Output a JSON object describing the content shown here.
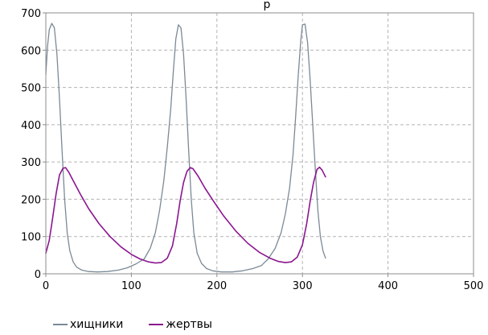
{
  "chart_data": {
    "type": "line",
    "title": "р",
    "xlabel": "",
    "ylabel": "",
    "xlim": [
      0,
      500
    ],
    "ylim": [
      0,
      700
    ],
    "x_ticks": [
      0,
      100,
      200,
      300,
      400,
      500
    ],
    "y_ticks": [
      0,
      100,
      200,
      300,
      400,
      500,
      600,
      700
    ],
    "grid": true,
    "legend_position": "bottom-left",
    "series": [
      {
        "name": "хищники",
        "color": "#7a8a97",
        "points": [
          [
            0,
            535
          ],
          [
            2,
            610
          ],
          [
            4,
            655
          ],
          [
            7,
            672
          ],
          [
            10,
            660
          ],
          [
            13,
            590
          ],
          [
            16,
            470
          ],
          [
            19,
            330
          ],
          [
            22,
            200
          ],
          [
            25,
            110
          ],
          [
            28,
            62
          ],
          [
            32,
            32
          ],
          [
            36,
            18
          ],
          [
            42,
            10
          ],
          [
            50,
            6
          ],
          [
            60,
            5
          ],
          [
            72,
            6
          ],
          [
            85,
            10
          ],
          [
            95,
            16
          ],
          [
            105,
            26
          ],
          [
            115,
            40
          ],
          [
            122,
            68
          ],
          [
            128,
            110
          ],
          [
            133,
            170
          ],
          [
            138,
            250
          ],
          [
            142,
            340
          ],
          [
            146,
            440
          ],
          [
            149,
            540
          ],
          [
            152,
            630
          ],
          [
            155,
            668
          ],
          [
            158,
            660
          ],
          [
            161,
            590
          ],
          [
            164,
            470
          ],
          [
            167,
            330
          ],
          [
            170,
            200
          ],
          [
            173,
            110
          ],
          [
            177,
            55
          ],
          [
            182,
            28
          ],
          [
            188,
            14
          ],
          [
            195,
            8
          ],
          [
            205,
            5
          ],
          [
            218,
            5
          ],
          [
            230,
            8
          ],
          [
            242,
            14
          ],
          [
            252,
            22
          ],
          [
            260,
            40
          ],
          [
            268,
            68
          ],
          [
            275,
            110
          ],
          [
            280,
            160
          ],
          [
            285,
            230
          ],
          [
            289,
            320
          ],
          [
            292,
            420
          ],
          [
            295,
            530
          ],
          [
            298,
            625
          ],
          [
            300,
            668
          ],
          [
            303,
            670
          ],
          [
            306,
            620
          ],
          [
            309,
            520
          ],
          [
            312,
            400
          ],
          [
            315,
            280
          ],
          [
            318,
            170
          ],
          [
            321,
            100
          ],
          [
            324,
            62
          ],
          [
            327,
            42
          ]
        ]
      },
      {
        "name": "жертвы",
        "color": "#8b168f",
        "points": [
          [
            0,
            55
          ],
          [
            4,
            90
          ],
          [
            8,
            150
          ],
          [
            12,
            215
          ],
          [
            16,
            265
          ],
          [
            20,
            283
          ],
          [
            23,
            285
          ],
          [
            27,
            272
          ],
          [
            32,
            250
          ],
          [
            40,
            215
          ],
          [
            50,
            175
          ],
          [
            62,
            135
          ],
          [
            75,
            100
          ],
          [
            88,
            72
          ],
          [
            100,
            52
          ],
          [
            110,
            40
          ],
          [
            120,
            32
          ],
          [
            128,
            29
          ],
          [
            135,
            30
          ],
          [
            142,
            42
          ],
          [
            148,
            75
          ],
          [
            153,
            135
          ],
          [
            157,
            195
          ],
          [
            161,
            245
          ],
          [
            165,
            275
          ],
          [
            169,
            285
          ],
          [
            172,
            282
          ],
          [
            178,
            262
          ],
          [
            186,
            230
          ],
          [
            196,
            195
          ],
          [
            208,
            155
          ],
          [
            222,
            115
          ],
          [
            236,
            82
          ],
          [
            250,
            57
          ],
          [
            262,
            42
          ],
          [
            272,
            33
          ],
          [
            280,
            30
          ],
          [
            287,
            32
          ],
          [
            294,
            45
          ],
          [
            300,
            78
          ],
          [
            305,
            135
          ],
          [
            309,
            195
          ],
          [
            313,
            245
          ],
          [
            317,
            280
          ],
          [
            320,
            286
          ],
          [
            323,
            278
          ],
          [
            327,
            260
          ]
        ]
      }
    ]
  }
}
